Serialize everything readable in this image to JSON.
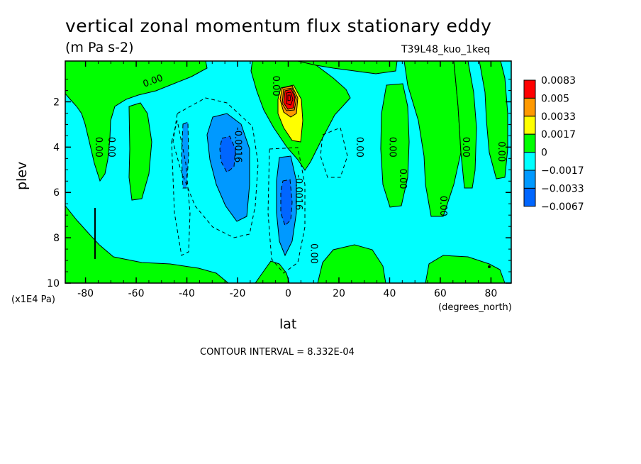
{
  "chart_data": {
    "type": "heatmap",
    "title": "vertical zonal momentum flux stationary eddy",
    "subtitle": "(m Pa s-2)",
    "dataset_label": "T39L48_kuo_1keq",
    "xlabel": "lat",
    "ylabel": "plev",
    "x_units": "(degrees_north)",
    "y_units": "(x1E4 Pa)",
    "xlim": [
      -88,
      88
    ],
    "ylim": [
      10,
      0.2
    ],
    "x_ticks": [
      -80,
      -60,
      -40,
      -20,
      0,
      20,
      40,
      60,
      80
    ],
    "y_ticks": [
      2,
      4,
      6,
      8,
      10
    ],
    "contour_interval_text": "CONTOUR INTERVAL = 8.332E-04",
    "legend": {
      "position": "right",
      "levels": [
        "0.0083",
        "0.005",
        "0.0033",
        "0.0017",
        "0",
        "-0.0017",
        "-0.0033",
        "-0.0067"
      ],
      "colors": [
        "#ff0000",
        "#ff9900",
        "#ffff00",
        "#00ff00",
        "#00ffff",
        "#0099ff",
        "#0066ff"
      ]
    },
    "contour_labels": [
      {
        "text": "0.00",
        "lat": -53,
        "plev": 1.2
      },
      {
        "text": "0.00",
        "lat": -76,
        "plev": 4.0
      },
      {
        "text": "0.00",
        "lat": -71,
        "plev": 4.0
      },
      {
        "text": "0.00",
        "lat": -6,
        "plev": 1.3
      },
      {
        "text": "-0.0016",
        "lat": -21,
        "plev": 3.9
      },
      {
        "text": "-0.0016",
        "lat": 3,
        "plev": 6.0
      },
      {
        "text": "0.00",
        "lat": 27,
        "plev": 4.0
      },
      {
        "text": "0.00",
        "lat": 40,
        "plev": 4.0
      },
      {
        "text": "0.00",
        "lat": 44,
        "plev": 5.4
      },
      {
        "text": "0.00",
        "lat": 60,
        "plev": 6.6
      },
      {
        "text": "0.00",
        "lat": 69,
        "plev": 4.0
      },
      {
        "text": "0.00",
        "lat": 83,
        "plev": 4.2
      },
      {
        "text": "0.00",
        "lat": 9,
        "plev": 8.7
      }
    ]
  }
}
